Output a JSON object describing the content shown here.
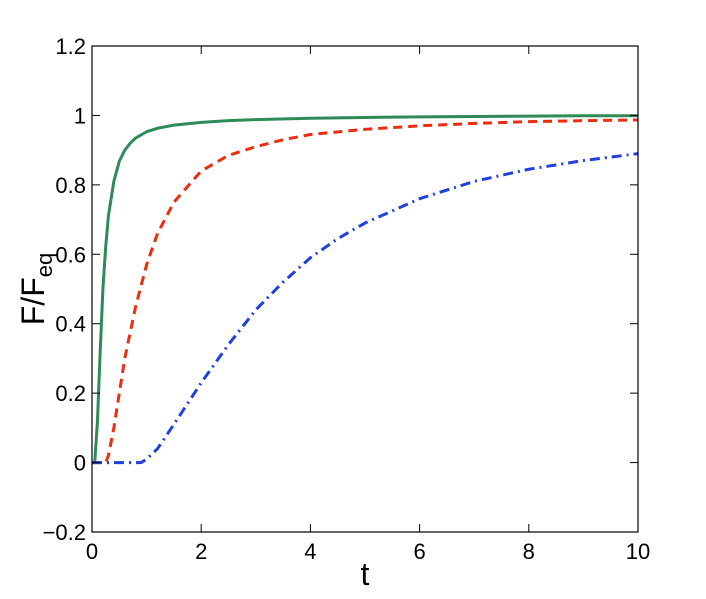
{
  "chart_data": {
    "type": "line",
    "xlabel": "t",
    "ylabel": "F/F",
    "ylabel_subscript": "eq",
    "xlim": [
      0,
      10
    ],
    "ylim": [
      -0.2,
      1.2
    ],
    "xticks": [
      0,
      2,
      4,
      6,
      8,
      10
    ],
    "yticks": [
      -0.2,
      0,
      0.2,
      0.4,
      0.6,
      0.8,
      1,
      1.2
    ],
    "xtick_labels": [
      "0",
      "2",
      "4",
      "6",
      "8",
      "10"
    ],
    "ytick_labels": [
      "−0.2",
      "0",
      "0.2",
      "0.4",
      "0.6",
      "0.8",
      "1",
      "1.2"
    ],
    "grid": false,
    "legend": "none",
    "series": [
      {
        "color": "#2e8b57",
        "style": "solid",
        "x": [
          0,
          0.05,
          0.1,
          0.15,
          0.2,
          0.25,
          0.3,
          0.4,
          0.5,
          0.6,
          0.7,
          0.8,
          1.0,
          1.2,
          1.5,
          2.0,
          2.5,
          3.0,
          4.0,
          5.0,
          6.0,
          7.0,
          8.0,
          9.0,
          10.0
        ],
        "y": [
          0,
          0.0,
          0.12,
          0.32,
          0.5,
          0.62,
          0.71,
          0.81,
          0.868,
          0.9,
          0.92,
          0.935,
          0.953,
          0.963,
          0.972,
          0.98,
          0.985,
          0.988,
          0.992,
          0.994,
          0.996,
          0.997,
          0.998,
          0.999,
          0.999
        ]
      },
      {
        "color": "#ee2c10",
        "style": "dashed",
        "x": [
          0,
          0.25,
          0.3,
          0.4,
          0.5,
          0.6,
          0.8,
          1.0,
          1.2,
          1.5,
          2.0,
          2.5,
          3.0,
          3.5,
          4.0,
          5.0,
          6.0,
          7.0,
          8.0,
          9.0,
          10.0
        ],
        "y": [
          0,
          0.0,
          0.02,
          0.1,
          0.2,
          0.3,
          0.45,
          0.57,
          0.66,
          0.75,
          0.84,
          0.885,
          0.91,
          0.93,
          0.945,
          0.96,
          0.97,
          0.977,
          0.982,
          0.985,
          0.987
        ]
      },
      {
        "color": "#1f3fe0",
        "style": "dashdot",
        "x": [
          0,
          0.9,
          1.0,
          1.2,
          1.5,
          2.0,
          2.5,
          3.0,
          3.5,
          4.0,
          4.5,
          5.0,
          5.5,
          6.0,
          7.0,
          8.0,
          9.0,
          10.0
        ],
        "y": [
          0,
          0.0,
          0.01,
          0.04,
          0.11,
          0.23,
          0.34,
          0.44,
          0.52,
          0.59,
          0.645,
          0.69,
          0.725,
          0.76,
          0.81,
          0.845,
          0.87,
          0.89
        ]
      }
    ]
  }
}
